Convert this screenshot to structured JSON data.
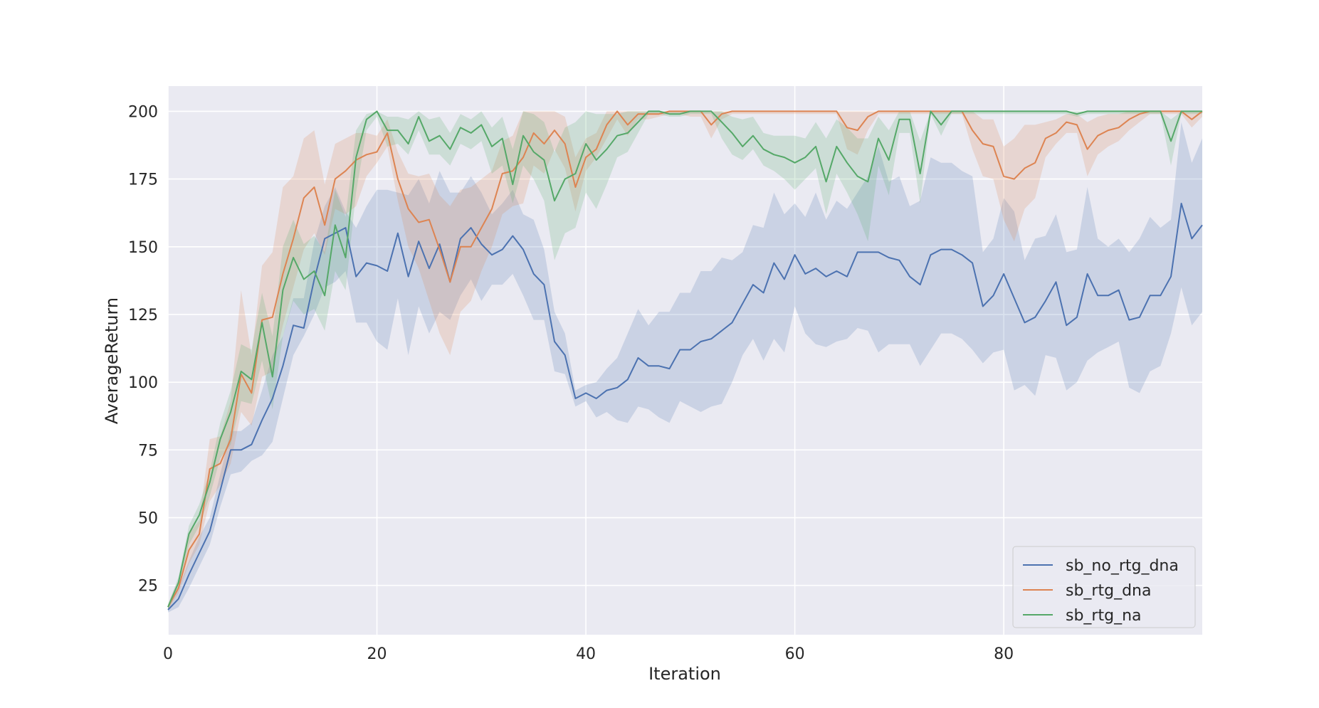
{
  "chart_data": {
    "type": "line",
    "xlabel": "Iteration",
    "ylabel": "AverageReturn",
    "xlim": [
      0,
      99
    ],
    "ylim": [
      6.8,
      209.3
    ],
    "x_ticks": [
      0,
      20,
      40,
      60,
      80
    ],
    "y_ticks": [
      25,
      50,
      75,
      100,
      125,
      150,
      175,
      200
    ],
    "grid": true,
    "legend_position": "lower right",
    "series": [
      {
        "name": "sb_no_rtg_dna",
        "color": "#4C72B0",
        "mean": [
          16,
          20,
          29,
          37,
          45,
          60,
          75,
          75,
          77,
          86,
          94,
          106,
          121,
          120,
          138,
          153,
          155,
          157,
          139,
          144,
          143,
          141,
          155,
          139,
          152,
          142,
          151,
          137,
          153,
          157,
          151,
          147,
          149,
          154,
          149,
          140,
          136,
          115,
          110,
          94,
          96,
          94,
          97,
          98,
          101,
          109,
          106,
          106,
          105,
          112,
          112,
          115,
          116,
          119,
          122,
          129,
          136,
          133,
          144,
          138,
          147,
          140,
          142,
          139,
          141,
          139,
          148,
          148,
          148,
          146,
          145,
          139,
          136,
          147,
          149,
          149,
          147,
          144,
          128,
          132,
          140,
          131,
          122,
          124,
          130,
          137,
          121,
          124,
          140,
          132,
          132,
          134,
          123,
          124,
          132,
          132,
          139,
          166,
          153,
          158
        ],
        "low": [
          15,
          17,
          24,
          32,
          40,
          54,
          66,
          67,
          71,
          73,
          78,
          94,
          110,
          117,
          125,
          135,
          137,
          141,
          122,
          122,
          115,
          112,
          131,
          110,
          128,
          118,
          126,
          123,
          132,
          138,
          130,
          136,
          136,
          140,
          132,
          123,
          123,
          104,
          103,
          91,
          93,
          87,
          89,
          86,
          85,
          91,
          90,
          87,
          85,
          93,
          91,
          89,
          91,
          92,
          100,
          110,
          116,
          108,
          116,
          111,
          128,
          118,
          114,
          113,
          115,
          116,
          120,
          119,
          111,
          114,
          114,
          114,
          106,
          112,
          118,
          118,
          116,
          112,
          107,
          111,
          112,
          97,
          99,
          95,
          110,
          109,
          97,
          100,
          108,
          111,
          113,
          115,
          98,
          96,
          104,
          106,
          118,
          135,
          121,
          126
        ],
        "high": [
          17,
          24,
          34,
          43,
          50,
          66,
          82,
          82,
          85,
          97,
          110,
          117,
          131,
          131,
          152,
          165,
          172,
          163,
          157,
          165,
          171,
          171,
          170,
          169,
          175,
          166,
          178,
          170,
          170,
          176,
          170,
          162,
          166,
          171,
          162,
          160,
          149,
          126,
          118,
          97,
          99,
          100,
          105,
          109,
          118,
          127,
          121,
          126,
          126,
          133,
          133,
          141,
          141,
          146,
          145,
          148,
          158,
          157,
          170,
          162,
          166,
          161,
          170,
          160,
          167,
          164,
          170,
          176,
          187,
          174,
          176,
          165,
          167,
          183,
          181,
          181,
          178,
          176,
          148,
          153,
          168,
          163,
          145,
          153,
          154,
          162,
          148,
          149,
          172,
          153,
          150,
          153,
          148,
          153,
          161,
          157,
          160,
          196,
          181,
          190
        ]
      },
      {
        "name": "sb_rtg_dna",
        "color": "#DD8452",
        "mean": [
          17,
          24,
          38,
          44,
          68,
          70,
          79,
          103,
          96,
          123,
          124,
          140,
          153,
          168,
          172,
          158,
          175,
          178,
          182,
          184,
          185,
          192,
          175,
          164,
          159,
          160,
          149,
          137,
          150,
          150,
          157,
          164,
          177,
          178,
          183,
          192,
          188,
          193,
          188,
          172,
          183,
          186,
          195,
          200,
          195,
          199,
          199,
          199,
          200,
          200,
          200,
          200,
          195,
          199,
          200,
          200,
          200,
          200,
          200,
          200,
          200,
          200,
          200,
          200,
          200,
          194,
          193,
          198,
          200,
          200,
          200,
          200,
          200,
          200,
          200,
          200,
          200,
          193,
          188,
          187,
          176,
          175,
          179,
          181,
          190,
          192,
          196,
          195,
          186,
          191,
          193,
          194,
          197,
          199,
          200,
          200,
          200,
          200,
          197,
          200
        ],
        "low": [
          16,
          22,
          33,
          40,
          56,
          62,
          70,
          89,
          84,
          102,
          104,
          121,
          135,
          149,
          155,
          147,
          164,
          162,
          165,
          176,
          181,
          187,
          167,
          150,
          142,
          130,
          118,
          110,
          126,
          130,
          141,
          150,
          162,
          165,
          166,
          180,
          177,
          186,
          179,
          163,
          178,
          183,
          190,
          197,
          191,
          197,
          197,
          198,
          199,
          199,
          198,
          198,
          190,
          197,
          199,
          199,
          199,
          199,
          199,
          199,
          199,
          199,
          199,
          199,
          199,
          186,
          184,
          193,
          199,
          199,
          199,
          199,
          199,
          199,
          199,
          199,
          199,
          186,
          176,
          175,
          160,
          152,
          164,
          168,
          183,
          188,
          192,
          192,
          176,
          184,
          187,
          189,
          193,
          196,
          199,
          199,
          199,
          199,
          194,
          198
        ],
        "high": [
          18,
          27,
          44,
          49,
          79,
          80,
          93,
          134,
          110,
          143,
          148,
          172,
          176,
          190,
          193,
          173,
          188,
          190,
          192,
          192,
          191,
          197,
          185,
          177,
          176,
          177,
          169,
          165,
          171,
          172,
          175,
          178,
          189,
          191,
          200,
          200,
          200,
          200,
          198,
          183,
          190,
          192,
          200,
          200,
          200,
          200,
          200,
          200,
          200,
          200,
          200,
          200,
          200,
          200,
          200,
          200,
          200,
          200,
          200,
          200,
          200,
          200,
          200,
          200,
          200,
          200,
          200,
          200,
          200,
          200,
          200,
          200,
          200,
          200,
          200,
          200,
          200,
          200,
          197,
          197,
          187,
          190,
          195,
          195,
          196,
          197,
          199,
          199,
          196,
          198,
          199,
          199,
          200,
          200,
          200,
          200,
          200,
          200,
          200,
          200
        ]
      },
      {
        "name": "sb_rtg_na",
        "color": "#55A868",
        "mean": [
          17,
          26,
          44,
          51,
          63,
          79,
          89,
          104,
          101,
          122,
          102,
          134,
          146,
          138,
          141,
          132,
          158,
          146,
          183,
          197,
          200,
          193,
          193,
          188,
          198,
          189,
          191,
          186,
          194,
          192,
          195,
          187,
          190,
          173,
          191,
          185,
          182,
          167,
          175,
          177,
          188,
          182,
          186,
          191,
          192,
          196,
          200,
          200,
          199,
          199,
          200,
          200,
          200,
          196,
          192,
          187,
          191,
          186,
          184,
          183,
          181,
          183,
          187,
          174,
          187,
          181,
          176,
          174,
          190,
          182,
          197,
          197,
          177,
          200,
          195,
          200,
          200,
          200,
          200,
          200,
          200,
          200,
          200,
          200,
          200,
          200,
          200,
          199,
          200,
          200,
          200,
          200,
          200,
          200,
          200,
          200,
          189,
          200,
          200,
          200
        ],
        "low": [
          16,
          24,
          40,
          47,
          58,
          72,
          77,
          93,
          92,
          108,
          90,
          117,
          130,
          125,
          127,
          119,
          141,
          134,
          170,
          193,
          198,
          187,
          188,
          184,
          193,
          184,
          184,
          180,
          188,
          186,
          189,
          177,
          180,
          166,
          180,
          175,
          167,
          145,
          155,
          157,
          170,
          164,
          173,
          183,
          185,
          192,
          199,
          199,
          198,
          198,
          199,
          199,
          199,
          190,
          184,
          182,
          186,
          180,
          178,
          175,
          171,
          175,
          179,
          162,
          177,
          170,
          162,
          152,
          180,
          169,
          192,
          192,
          166,
          199,
          191,
          199,
          199,
          199,
          199,
          199,
          199,
          199,
          199,
          199,
          199,
          199,
          199,
          198,
          199,
          199,
          199,
          199,
          199,
          199,
          199,
          199,
          180,
          199,
          199,
          199
        ],
        "high": [
          18,
          28,
          47,
          55,
          67,
          85,
          97,
          114,
          112,
          133,
          117,
          150,
          160,
          151,
          154,
          148,
          171,
          161,
          193,
          199,
          200,
          198,
          198,
          197,
          200,
          197,
          198,
          192,
          199,
          197,
          200,
          194,
          198,
          186,
          200,
          199,
          196,
          185,
          194,
          196,
          200,
          199,
          199,
          199,
          200,
          200,
          200,
          200,
          200,
          200,
          200,
          200,
          200,
          200,
          198,
          197,
          198,
          192,
          191,
          191,
          191,
          190,
          196,
          190,
          197,
          194,
          190,
          190,
          198,
          193,
          200,
          200,
          189,
          200,
          200,
          200,
          200,
          200,
          200,
          200,
          200,
          200,
          200,
          200,
          200,
          200,
          200,
          200,
          200,
          200,
          200,
          200,
          200,
          200,
          200,
          200,
          197,
          200,
          200,
          200
        ]
      }
    ]
  }
}
